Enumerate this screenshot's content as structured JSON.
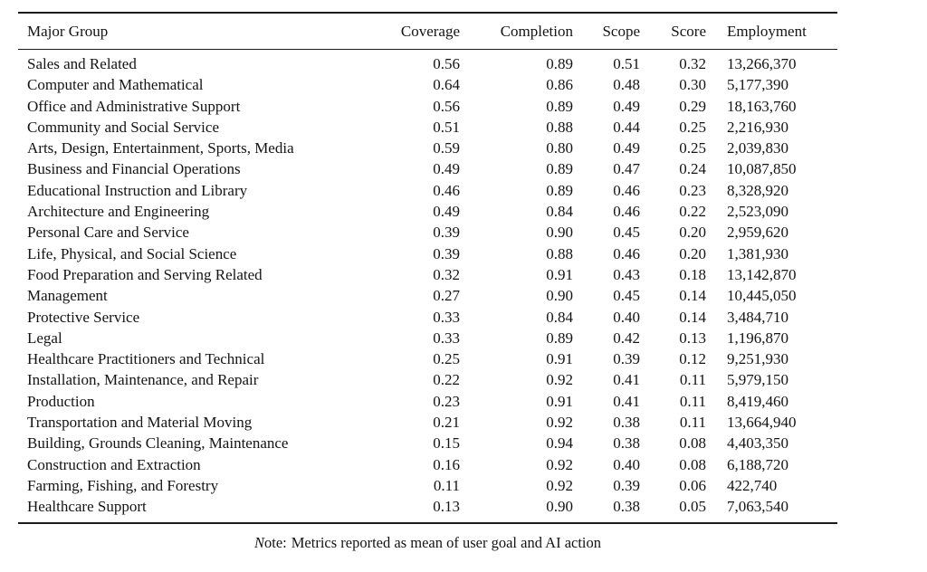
{
  "table": {
    "columns": [
      {
        "label": "Major Group"
      },
      {
        "label": "Coverage"
      },
      {
        "label": "Completion"
      },
      {
        "label": "Scope"
      },
      {
        "label": "Score"
      },
      {
        "label": "Employment"
      }
    ],
    "rows": [
      [
        "Sales and Related",
        "0.56",
        "0.89",
        "0.51",
        "0.32",
        "13,266,370"
      ],
      [
        "Computer and Mathematical",
        "0.64",
        "0.86",
        "0.48",
        "0.30",
        "5,177,390"
      ],
      [
        "Office and Administrative Support",
        "0.56",
        "0.89",
        "0.49",
        "0.29",
        "18,163,760"
      ],
      [
        "Community and Social Service",
        "0.51",
        "0.88",
        "0.44",
        "0.25",
        "2,216,930"
      ],
      [
        "Arts, Design, Entertainment, Sports, Media",
        "0.59",
        "0.80",
        "0.49",
        "0.25",
        "2,039,830"
      ],
      [
        "Business and Financial Operations",
        "0.49",
        "0.89",
        "0.47",
        "0.24",
        "10,087,850"
      ],
      [
        "Educational Instruction and Library",
        "0.46",
        "0.89",
        "0.46",
        "0.23",
        "8,328,920"
      ],
      [
        "Architecture and Engineering",
        "0.49",
        "0.84",
        "0.46",
        "0.22",
        "2,523,090"
      ],
      [
        "Personal Care and Service",
        "0.39",
        "0.90",
        "0.45",
        "0.20",
        "2,959,620"
      ],
      [
        "Life, Physical, and Social Science",
        "0.39",
        "0.88",
        "0.46",
        "0.20",
        "1,381,930"
      ],
      [
        "Food Preparation and Serving Related",
        "0.32",
        "0.91",
        "0.43",
        "0.18",
        "13,142,870"
      ],
      [
        "Management",
        "0.27",
        "0.90",
        "0.45",
        "0.14",
        "10,445,050"
      ],
      [
        "Protective Service",
        "0.33",
        "0.84",
        "0.40",
        "0.14",
        "3,484,710"
      ],
      [
        "Legal",
        "0.33",
        "0.89",
        "0.42",
        "0.13",
        "1,196,870"
      ],
      [
        "Healthcare Practitioners and Technical",
        "0.25",
        "0.91",
        "0.39",
        "0.12",
        "9,251,930"
      ],
      [
        "Installation, Maintenance, and Repair",
        "0.22",
        "0.92",
        "0.41",
        "0.11",
        "5,979,150"
      ],
      [
        "Production",
        "0.23",
        "0.91",
        "0.41",
        "0.11",
        "8,419,460"
      ],
      [
        "Transportation and Material Moving",
        "0.21",
        "0.92",
        "0.38",
        "0.11",
        "13,664,940"
      ],
      [
        "Building, Grounds Cleaning, Maintenance",
        "0.15",
        "0.94",
        "0.38",
        "0.08",
        "4,403,350"
      ],
      [
        "Construction and Extraction",
        "0.16",
        "0.92",
        "0.40",
        "0.08",
        "6,188,720"
      ],
      [
        "Farming, Fishing, and Forestry",
        "0.11",
        "0.92",
        "0.39",
        "0.06",
        "422,740"
      ],
      [
        "Healthcare Support",
        "0.13",
        "0.90",
        "0.38",
        "0.05",
        "7,063,540"
      ]
    ]
  },
  "note": {
    "italic_prefix": "N",
    "prefix_rest": "ote:",
    "text": "Metrics reported as mean of user goal and AI action"
  },
  "colors": {
    "rule": "#1c1c1c",
    "text": "#141414",
    "background": "#ffffff"
  }
}
